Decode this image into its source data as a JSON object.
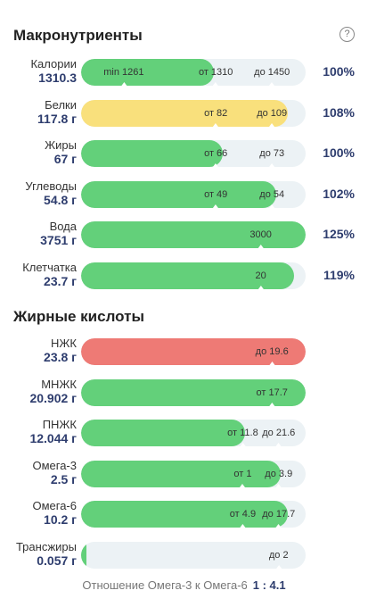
{
  "colors": {
    "green": "#63d07a",
    "yellow": "#f9e07c",
    "red": "#ee7a75",
    "track": "#ecf2f5",
    "value_text": "#2e3d6e"
  },
  "help_icon": "question-circle-icon",
  "help_symbol": "?",
  "macros": {
    "title": "Макронутриенты",
    "rows": [
      {
        "name": "Калории",
        "value": "1310.3",
        "percent": "100%",
        "fill": 0.59,
        "color": "green",
        "markers": [
          {
            "text": "min 1261",
            "pos": 0.19
          },
          {
            "text": "от 1310",
            "pos": 0.6
          },
          {
            "text": "до 1450",
            "pos": 0.85
          }
        ]
      },
      {
        "name": "Белки",
        "value": "117.8 г",
        "percent": "108%",
        "fill": 0.92,
        "color": "yellow",
        "markers": [
          {
            "text": "от 82",
            "pos": 0.6
          },
          {
            "text": "до 109",
            "pos": 0.85
          }
        ]
      },
      {
        "name": "Жиры",
        "value": "67 г",
        "percent": "100%",
        "fill": 0.63,
        "color": "green",
        "markers": [
          {
            "text": "от 66",
            "pos": 0.6
          },
          {
            "text": "до 73",
            "pos": 0.85
          }
        ]
      },
      {
        "name": "Углеводы",
        "value": "54.8 г",
        "percent": "102%",
        "fill": 0.87,
        "color": "green",
        "markers": [
          {
            "text": "от 49",
            "pos": 0.6
          },
          {
            "text": "до 54",
            "pos": 0.85
          }
        ]
      },
      {
        "name": "Вода",
        "value": "3751 г",
        "percent": "125%",
        "fill": 1.0,
        "color": "green",
        "markers": [
          {
            "text": "3000",
            "pos": 0.8
          }
        ]
      },
      {
        "name": "Клетчатка",
        "value": "23.7 г",
        "percent": "119%",
        "fill": 0.95,
        "color": "green",
        "markers": [
          {
            "text": "20",
            "pos": 0.8
          }
        ]
      }
    ]
  },
  "fatty_acids": {
    "title": "Жирные кислоты",
    "rows": [
      {
        "name": "НЖК",
        "value": "23.8 г",
        "fill": 1.0,
        "color": "red",
        "markers": [
          {
            "text": "до 19.6",
            "pos": 0.85
          }
        ]
      },
      {
        "name": "МНЖК",
        "value": "20.902 г",
        "fill": 1.0,
        "color": "green",
        "markers": [
          {
            "text": "от 17.7",
            "pos": 0.85
          }
        ]
      },
      {
        "name": "ПНЖК",
        "value": "12.044 г",
        "fill": 0.73,
        "color": "green",
        "markers": [
          {
            "text": "от 11.8",
            "pos": 0.72
          },
          {
            "text": "до 21.6",
            "pos": 0.88
          }
        ]
      },
      {
        "name": "Омега-3",
        "value": "2.5 г",
        "fill": 0.89,
        "color": "green",
        "markers": [
          {
            "text": "от 1",
            "pos": 0.72
          },
          {
            "text": "до 3.9",
            "pos": 0.88
          }
        ]
      },
      {
        "name": "Омега-6",
        "value": "10.2 г",
        "fill": 0.92,
        "color": "green",
        "markers": [
          {
            "text": "от 4.9",
            "pos": 0.72
          },
          {
            "text": "до 17.7",
            "pos": 0.88
          }
        ]
      },
      {
        "name": "Трансжиры",
        "value": "0.057 г",
        "fill": 0.025,
        "color": "green",
        "markers": [
          {
            "text": "до 2",
            "pos": 0.88
          }
        ]
      }
    ]
  },
  "omega_ratio": {
    "label": "Отношение Омега-3 к Омега-6",
    "value": "1 : 4.1"
  }
}
